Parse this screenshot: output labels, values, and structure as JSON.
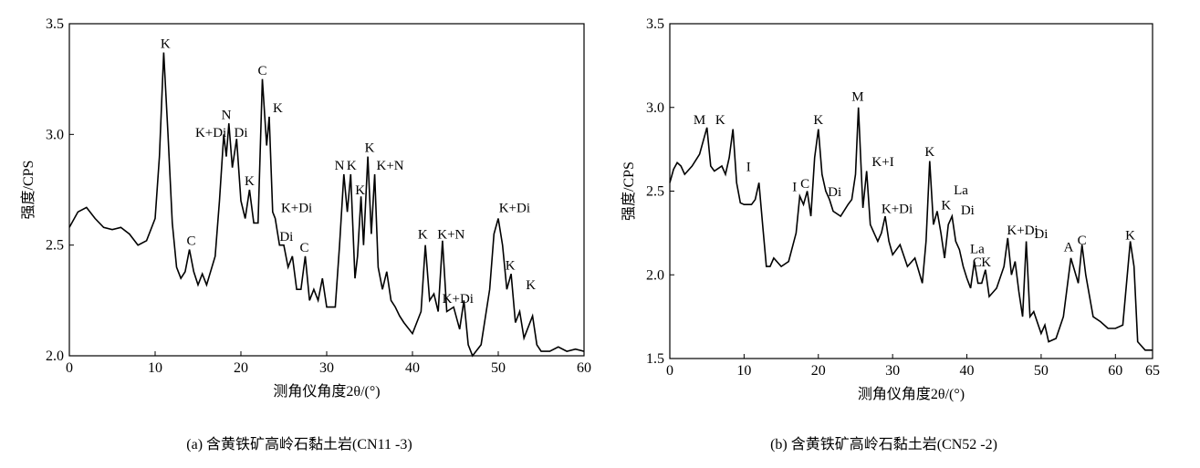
{
  "chart_data": [
    {
      "type": "line",
      "title": "(a) 含黄铁矿高岭石黏土岩(CN11 -3)",
      "xlabel": "测角仪角度2θ/(°)",
      "ylabel": "强度/CPS",
      "color": "#000000",
      "xlim": [
        0,
        60
      ],
      "xticks": [
        0,
        10,
        20,
        30,
        40,
        50,
        60
      ],
      "ylim": [
        2,
        3.5
      ],
      "yticks": [
        {
          "value": 2,
          "label": "2.0"
        },
        2.5,
        {
          "value": 3,
          "label": "3.0"
        },
        3.5
      ],
      "x": [
        0,
        1,
        2,
        3,
        4,
        5,
        6,
        7,
        8,
        9,
        10,
        10.5,
        11,
        11.5,
        12,
        12.5,
        13,
        13.5,
        14,
        14.5,
        15,
        15.5,
        16,
        17,
        17.5,
        18,
        18.3,
        18.6,
        19,
        19.5,
        20,
        20.5,
        21,
        21.5,
        22,
        22.5,
        23,
        23.3,
        23.7,
        24,
        24.5,
        25,
        25.5,
        26,
        26.5,
        27,
        27.5,
        28,
        28.5,
        29,
        29.5,
        30,
        31,
        31.5,
        32,
        32.4,
        32.8,
        33.3,
        33.6,
        34,
        34.3,
        34.8,
        35.2,
        35.6,
        36,
        36.5,
        37,
        37.5,
        38,
        38.5,
        39,
        40,
        41,
        41.5,
        42,
        42.5,
        43,
        43.5,
        44,
        44.8,
        45.5,
        46,
        46.5,
        47,
        48,
        49,
        49.5,
        50,
        50.5,
        51,
        51.5,
        52,
        52.5,
        53,
        54,
        54.5,
        55,
        56,
        57,
        58,
        59,
        60
      ],
      "values": [
        2.58,
        2.65,
        2.67,
        2.62,
        2.58,
        2.57,
        2.58,
        2.55,
        2.5,
        2.52,
        2.62,
        2.9,
        3.37,
        3.0,
        2.6,
        2.4,
        2.35,
        2.38,
        2.48,
        2.38,
        2.32,
        2.37,
        2.32,
        2.45,
        2.7,
        3.0,
        2.9,
        3.05,
        2.85,
        2.98,
        2.7,
        2.62,
        2.75,
        2.6,
        2.6,
        3.25,
        2.95,
        3.08,
        2.65,
        2.62,
        2.5,
        2.5,
        2.4,
        2.45,
        2.3,
        2.3,
        2.45,
        2.25,
        2.3,
        2.25,
        2.35,
        2.22,
        2.22,
        2.5,
        2.82,
        2.65,
        2.82,
        2.35,
        2.45,
        2.72,
        2.5,
        2.9,
        2.55,
        2.82,
        2.4,
        2.3,
        2.38,
        2.25,
        2.22,
        2.18,
        2.15,
        2.1,
        2.2,
        2.5,
        2.25,
        2.28,
        2.2,
        2.52,
        2.2,
        2.22,
        2.12,
        2.25,
        2.05,
        2.0,
        2.05,
        2.3,
        2.55,
        2.62,
        2.5,
        2.3,
        2.37,
        2.15,
        2.2,
        2.08,
        2.18,
        2.05,
        2.02,
        2.02,
        2.04,
        2.02,
        2.03,
        2.02
      ],
      "annotations": [
        {
          "text": "K",
          "x": 11.2,
          "y": 3.39
        },
        {
          "text": "C",
          "x": 14.2,
          "y": 2.5
        },
        {
          "text": "K+Di",
          "x": 16.5,
          "y": 2.99
        },
        {
          "text": "N",
          "x": 18.3,
          "y": 3.07
        },
        {
          "text": "Di",
          "x": 20,
          "y": 2.99
        },
        {
          "text": "K",
          "x": 21,
          "y": 2.77
        },
        {
          "text": "C",
          "x": 22.5,
          "y": 3.27
        },
        {
          "text": "K",
          "x": 24.3,
          "y": 3.1
        },
        {
          "text": "K+Di",
          "x": 26.5,
          "y": 2.65
        },
        {
          "text": "Di",
          "x": 25.3,
          "y": 2.52
        },
        {
          "text": "C",
          "x": 27.4,
          "y": 2.47
        },
        {
          "text": "N",
          "x": 31.5,
          "y": 2.84
        },
        {
          "text": "K",
          "x": 32.9,
          "y": 2.84
        },
        {
          "text": "K",
          "x": 33.9,
          "y": 2.73
        },
        {
          "text": "K",
          "x": 35,
          "y": 2.92
        },
        {
          "text": "K+N",
          "x": 37.4,
          "y": 2.84
        },
        {
          "text": "K",
          "x": 41.2,
          "y": 2.53
        },
        {
          "text": "K+N",
          "x": 44.5,
          "y": 2.53
        },
        {
          "text": "K+Di",
          "x": 45.3,
          "y": 2.24
        },
        {
          "text": "K+Di",
          "x": 51.9,
          "y": 2.65
        },
        {
          "text": "K",
          "x": 51.4,
          "y": 2.39
        },
        {
          "text": "K",
          "x": 53.8,
          "y": 2.3
        }
      ]
    },
    {
      "type": "line",
      "title": "(b) 含黄铁矿高岭石黏土岩(CN52 -2)",
      "xlabel": "测角仪角度2θ/(°)",
      "ylabel": "强度/CPS",
      "color": "#000000",
      "xlim": [
        0,
        65
      ],
      "xticks": [
        0,
        10,
        20,
        30,
        40,
        50,
        60,
        65
      ],
      "ylim": [
        1.5,
        3.5
      ],
      "yticks": [
        1.5,
        {
          "value": 2,
          "label": "2.0"
        },
        2.5,
        {
          "value": 3,
          "label": "3.0"
        },
        3.5
      ],
      "x": [
        0,
        0.5,
        1,
        1.5,
        2,
        3,
        4,
        5,
        5.5,
        6,
        7,
        7.5,
        8,
        8.5,
        9,
        9.5,
        10,
        11,
        11.5,
        12,
        12.5,
        13,
        13.5,
        14,
        15,
        16,
        17,
        17.5,
        18,
        18.5,
        19,
        19.5,
        20,
        20.5,
        21,
        21.5,
        22,
        23,
        24,
        24.5,
        25,
        25.4,
        26,
        26.5,
        27,
        27.5,
        28,
        28.5,
        29,
        29.5,
        30,
        31,
        32,
        33,
        34,
        34.5,
        35,
        35.5,
        36,
        36.5,
        37,
        37.5,
        38,
        38.5,
        39,
        39.5,
        40,
        40.5,
        41,
        41.5,
        42,
        42.5,
        43,
        44,
        45,
        45.5,
        46,
        46.5,
        47,
        47.5,
        48,
        48.5,
        49,
        50,
        50.5,
        51,
        52,
        53,
        54,
        55,
        55.5,
        56,
        57,
        58,
        59,
        60,
        61,
        62,
        62.5,
        63,
        64,
        65
      ],
      "values": [
        2.55,
        2.63,
        2.67,
        2.65,
        2.6,
        2.65,
        2.72,
        2.88,
        2.65,
        2.62,
        2.65,
        2.6,
        2.7,
        2.87,
        2.55,
        2.43,
        2.42,
        2.42,
        2.45,
        2.55,
        2.3,
        2.05,
        2.05,
        2.1,
        2.05,
        2.08,
        2.25,
        2.47,
        2.42,
        2.5,
        2.35,
        2.7,
        2.87,
        2.6,
        2.5,
        2.45,
        2.38,
        2.35,
        2.42,
        2.45,
        2.6,
        3.0,
        2.4,
        2.62,
        2.3,
        2.25,
        2.2,
        2.25,
        2.35,
        2.2,
        2.12,
        2.18,
        2.05,
        2.1,
        1.95,
        2.2,
        2.68,
        2.3,
        2.38,
        2.25,
        2.1,
        2.3,
        2.35,
        2.2,
        2.15,
        2.05,
        1.98,
        1.92,
        2.08,
        1.95,
        1.95,
        2.03,
        1.87,
        1.92,
        2.05,
        2.22,
        2.0,
        2.08,
        1.9,
        1.75,
        2.2,
        1.75,
        1.78,
        1.65,
        1.7,
        1.6,
        1.62,
        1.75,
        2.1,
        1.95,
        2.18,
        2.0,
        1.75,
        1.72,
        1.68,
        1.68,
        1.7,
        2.2,
        2.05,
        1.6,
        1.55,
        1.55
      ],
      "annotations": [
        {
          "text": "M",
          "x": 4,
          "y": 2.9
        },
        {
          "text": "K",
          "x": 6.8,
          "y": 2.9
        },
        {
          "text": "I",
          "x": 10.6,
          "y": 2.62
        },
        {
          "text": "I",
          "x": 16.8,
          "y": 2.5
        },
        {
          "text": "C",
          "x": 18.2,
          "y": 2.52
        },
        {
          "text": "K",
          "x": 20,
          "y": 2.9
        },
        {
          "text": "Di",
          "x": 22.2,
          "y": 2.47
        },
        {
          "text": "M",
          "x": 25.3,
          "y": 3.04
        },
        {
          "text": "K+I",
          "x": 28.7,
          "y": 2.65
        },
        {
          "text": "K+Di",
          "x": 30.6,
          "y": 2.37
        },
        {
          "text": "K",
          "x": 35,
          "y": 2.71
        },
        {
          "text": "K",
          "x": 37.2,
          "y": 2.39
        },
        {
          "text": "La",
          "x": 39.2,
          "y": 2.48
        },
        {
          "text": "Di",
          "x": 40.1,
          "y": 2.36
        },
        {
          "text": "La",
          "x": 41.4,
          "y": 2.13
        },
        {
          "text": "C",
          "x": 41.4,
          "y": 2.05
        },
        {
          "text": "K",
          "x": 42.6,
          "y": 2.05
        },
        {
          "text": "K+Di",
          "x": 47.5,
          "y": 2.24
        },
        {
          "text": "Di",
          "x": 50,
          "y": 2.22
        },
        {
          "text": "A",
          "x": 53.7,
          "y": 2.14
        },
        {
          "text": "C",
          "x": 55.5,
          "y": 2.18
        },
        {
          "text": "K",
          "x": 62,
          "y": 2.21
        }
      ]
    }
  ]
}
